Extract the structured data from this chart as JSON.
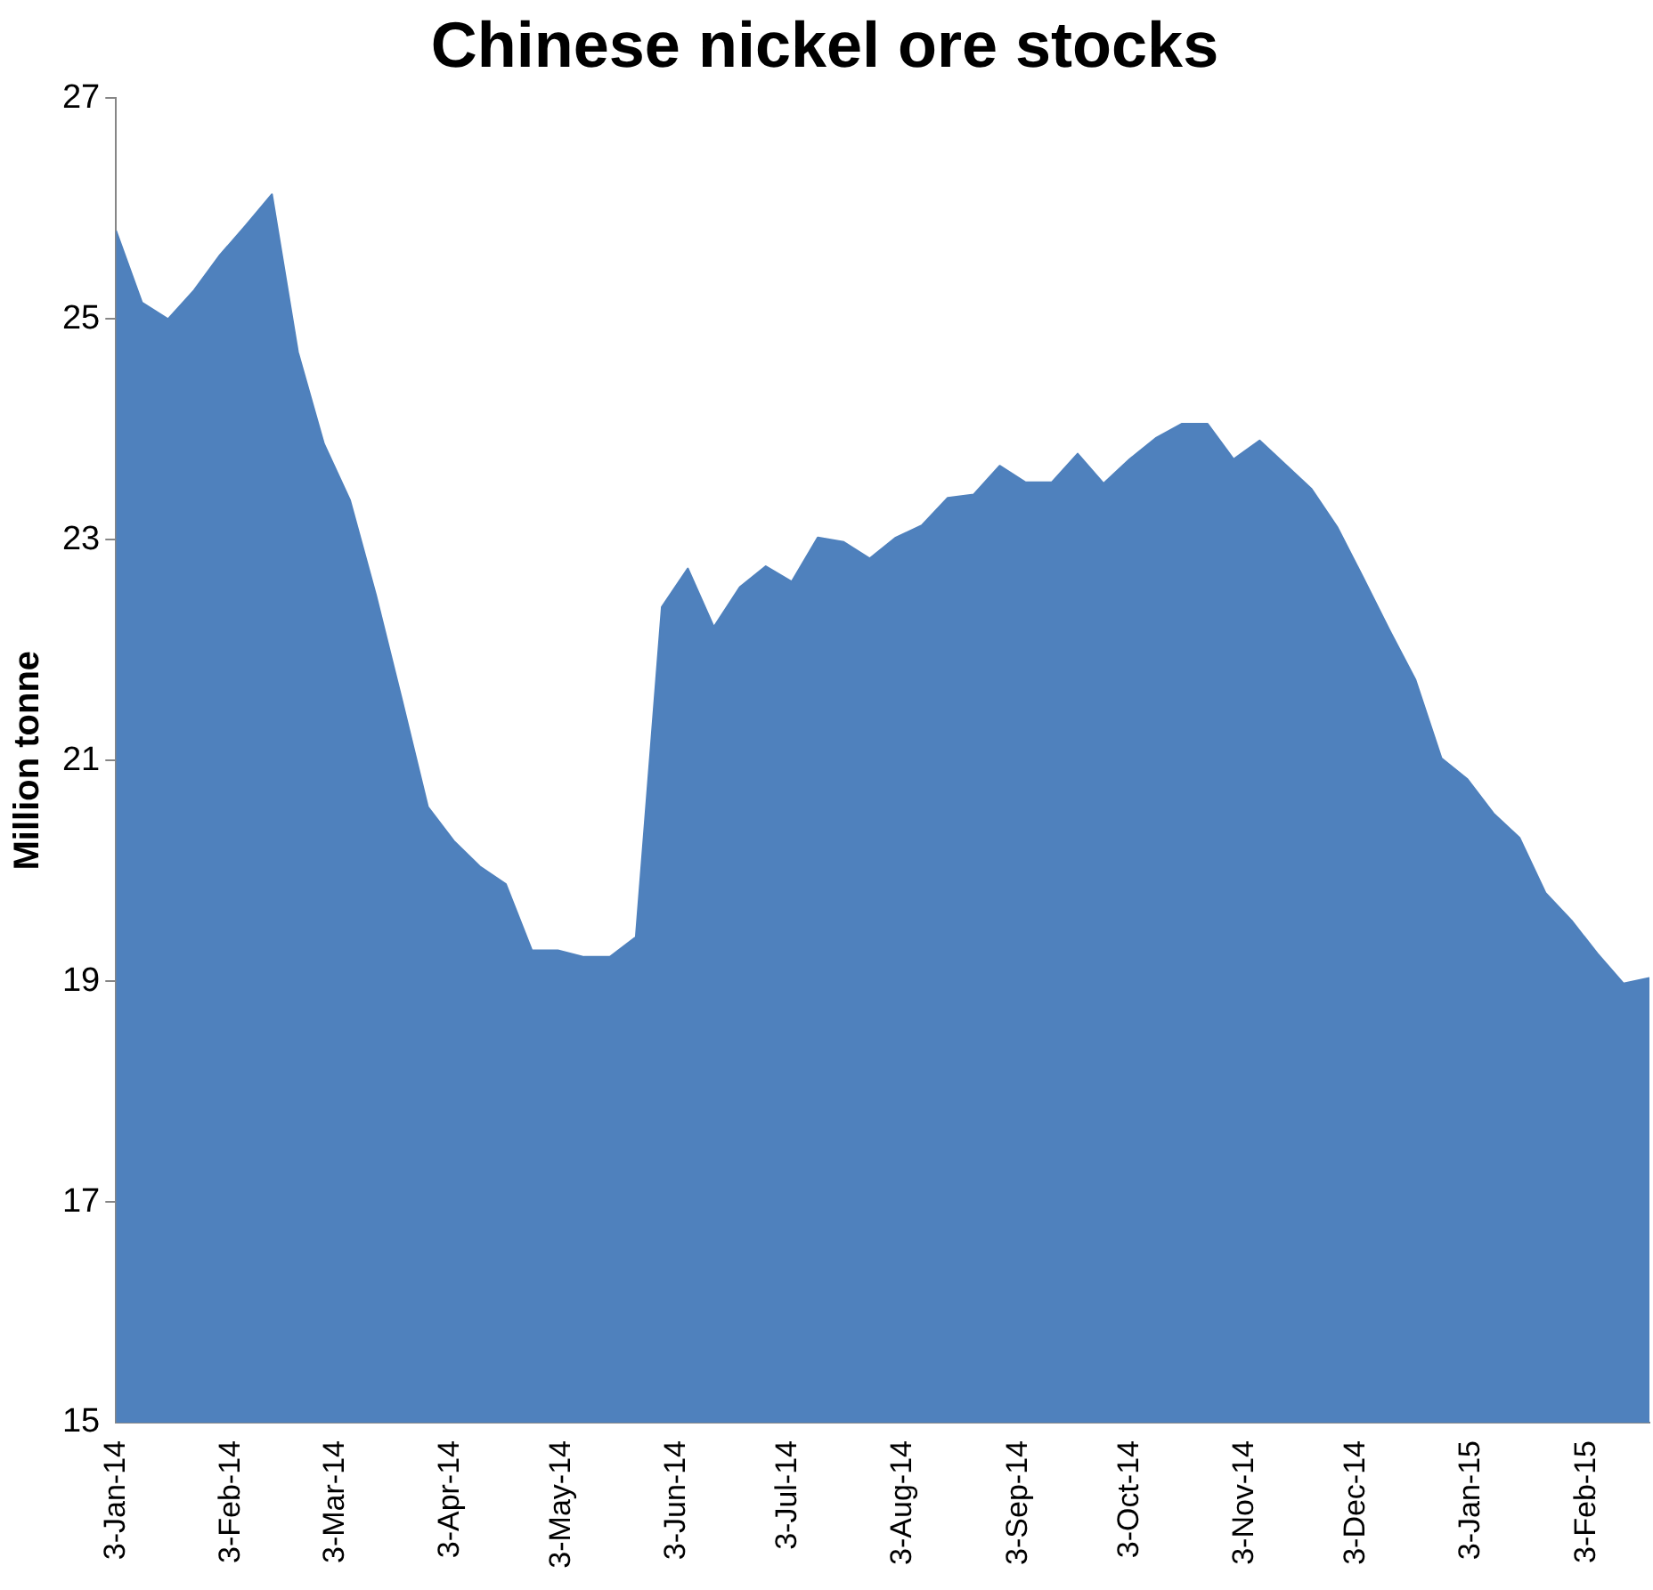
{
  "chart_data": {
    "type": "area",
    "title": "Chinese nickel ore stocks",
    "ylabel": "Million tonne",
    "x": [
      "2014-01-03",
      "2014-01-10",
      "2014-01-17",
      "2014-01-24",
      "2014-01-31",
      "2014-02-07",
      "2014-02-14",
      "2014-02-21",
      "2014-02-28",
      "2014-03-07",
      "2014-03-14",
      "2014-03-21",
      "2014-03-28",
      "2014-04-04",
      "2014-04-11",
      "2014-04-18",
      "2014-04-25",
      "2014-05-02",
      "2014-05-09",
      "2014-05-16",
      "2014-05-23",
      "2014-05-30",
      "2014-06-06",
      "2014-06-13",
      "2014-06-20",
      "2014-06-27",
      "2014-07-04",
      "2014-07-11",
      "2014-07-18",
      "2014-07-25",
      "2014-08-01",
      "2014-08-08",
      "2014-08-15",
      "2014-08-22",
      "2014-08-29",
      "2014-09-05",
      "2014-09-12",
      "2014-09-19",
      "2014-09-26",
      "2014-10-03",
      "2014-10-10",
      "2014-10-17",
      "2014-10-24",
      "2014-10-31",
      "2014-11-07",
      "2014-11-14",
      "2014-11-21",
      "2014-11-28",
      "2014-12-05",
      "2014-12-12",
      "2014-12-19",
      "2014-12-26",
      "2015-01-02",
      "2015-01-09",
      "2015-01-16",
      "2015-01-23",
      "2015-01-30",
      "2015-02-06",
      "2015-02-13",
      "2015-02-20"
    ],
    "series": [
      {
        "color": "#4f81bd",
        "values": [
          25.8,
          25.15,
          25.0,
          25.26,
          25.58,
          25.85,
          26.13,
          24.7,
          23.87,
          23.36,
          22.5,
          21.55,
          20.58,
          20.27,
          20.04,
          19.88,
          19.28,
          19.28,
          19.22,
          19.22,
          19.4,
          22.39,
          22.74,
          22.21,
          22.57,
          22.76,
          22.62,
          23.02,
          22.98,
          22.83,
          23.02,
          23.13,
          23.38,
          23.41,
          23.67,
          23.52,
          23.52,
          23.78,
          23.51,
          23.73,
          23.92,
          24.05,
          24.05,
          23.73,
          23.9,
          23.68,
          23.46,
          23.11,
          22.65,
          22.18,
          21.73,
          21.02,
          20.83,
          20.52,
          20.3,
          19.8,
          19.55,
          19.25,
          18.98,
          19.03
        ]
      }
    ],
    "xlim": [
      "2014-01-03",
      "2015-02-20"
    ],
    "xticks": [
      {
        "value": "2014-01-03",
        "label": "3-Jan-14"
      },
      {
        "value": "2014-02-03",
        "label": "3-Feb-14"
      },
      {
        "value": "2014-03-03",
        "label": "3-Mar-14"
      },
      {
        "value": "2014-04-03",
        "label": "3-Apr-14"
      },
      {
        "value": "2014-05-03",
        "label": "3-May-14"
      },
      {
        "value": "2014-06-03",
        "label": "3-Jun-14"
      },
      {
        "value": "2014-07-03",
        "label": "3-Jul-14"
      },
      {
        "value": "2014-08-03",
        "label": "3-Aug-14"
      },
      {
        "value": "2014-09-03",
        "label": "3-Sep-14"
      },
      {
        "value": "2014-10-03",
        "label": "3-Oct-14"
      },
      {
        "value": "2014-11-03",
        "label": "3-Nov-14"
      },
      {
        "value": "2014-12-03",
        "label": "3-Dec-14"
      },
      {
        "value": "2015-01-03",
        "label": "3-Jan-15"
      },
      {
        "value": "2015-02-03",
        "label": "3-Feb-15"
      }
    ],
    "ylim": [
      15,
      27
    ],
    "yticks": [
      15,
      17,
      19,
      21,
      23,
      25,
      27
    ],
    "grid": false,
    "legend": false
  }
}
